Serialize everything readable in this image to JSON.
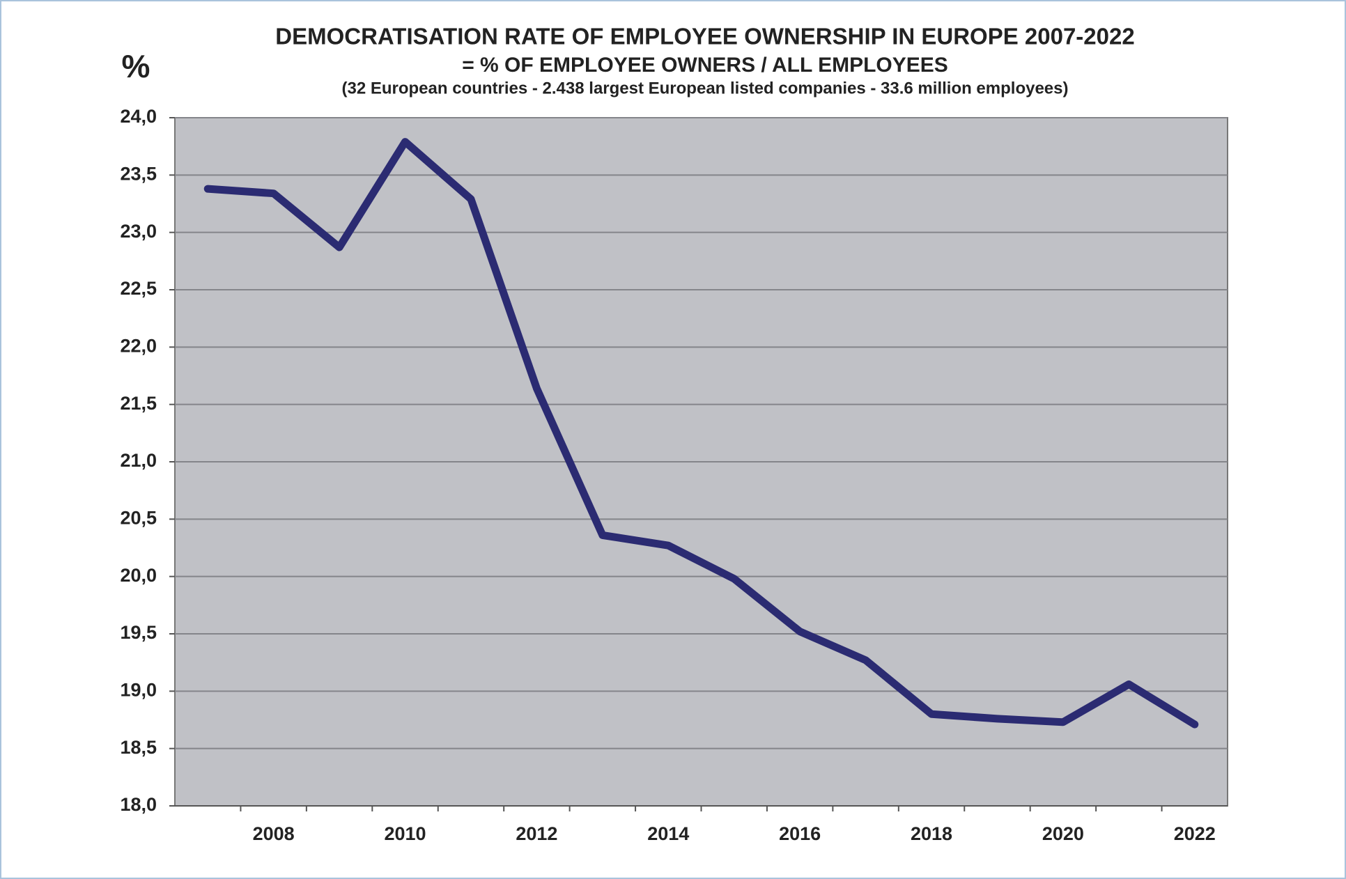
{
  "chart_data": {
    "type": "line",
    "title": "DEMOCRATISATION  RATE OF EMPLOYEE OWNERSHIP IN EUROPE  2007-2022",
    "subtitle": "=  % OF EMPLOYEE OWNERS /  ALL EMPLOYEES",
    "note": "(32 European countries - 2.438 largest European listed companies - 33.6 million employees)",
    "y_label": "%",
    "categories": [
      null,
      "2008",
      null,
      "2010",
      null,
      "2012",
      null,
      "2014",
      null,
      "2016",
      null,
      "2018",
      null,
      "2020",
      null,
      "2022"
    ],
    "series": [
      {
        "color": "#2b2b72",
        "values": [
          23.38,
          23.34,
          22.87,
          23.79,
          23.29,
          21.64,
          20.36,
          20.27,
          19.98,
          19.52,
          19.27,
          18.8,
          18.76,
          18.73,
          19.06,
          18.71
        ]
      }
    ],
    "ylim": [
      18,
      24
    ],
    "yticks": [
      {
        "value": 18,
        "label": "18,0"
      },
      {
        "value": 18.5,
        "label": "18,5"
      },
      {
        "value": 19,
        "label": "19,0"
      },
      {
        "value": 19.5,
        "label": "19,5"
      },
      {
        "value": 20,
        "label": "20,0"
      },
      {
        "value": 20.5,
        "label": "20,5"
      },
      {
        "value": 21,
        "label": "21,0"
      },
      {
        "value": 21.5,
        "label": "21,5"
      },
      {
        "value": 22,
        "label": "22,0"
      },
      {
        "value": 22.5,
        "label": "22,5"
      },
      {
        "value": 23,
        "label": "23,0"
      },
      {
        "value": 23.5,
        "label": "23,5"
      },
      {
        "value": 24,
        "label": "24,0"
      }
    ],
    "grid": true
  }
}
